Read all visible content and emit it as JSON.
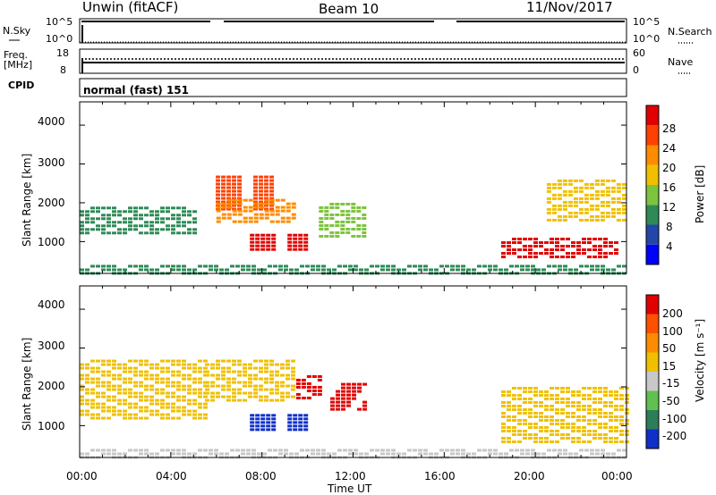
{
  "header": {
    "station": "Unwin (fitACF)",
    "beam": "Beam 10",
    "date": "11/Nov/2017"
  },
  "top_panel": {
    "left_label": "N.Sky",
    "right_label": "N.Search",
    "left_ticks": [
      "10^5",
      "10^0"
    ],
    "right_ticks": [
      "10^5",
      "10^0"
    ]
  },
  "freq_panel": {
    "left_label_1": "Freq.",
    "left_label_2": "[MHz]",
    "left_ticks": [
      "18",
      "8"
    ],
    "right_label": "Nave",
    "right_ticks": [
      "60",
      "0"
    ]
  },
  "cpid_panel": {
    "label": "CPID",
    "mode_text": "normal (fast) 151"
  },
  "x_axis": {
    "ticks": [
      "00:00",
      "04:00",
      "08:00",
      "12:00",
      "16:00",
      "20:00",
      "00:00"
    ],
    "label": "Time UT"
  },
  "power_panel": {
    "ylabel": "Slant Range [km]",
    "yticks": [
      "4000",
      "3000",
      "2000",
      "1000"
    ],
    "colorbar_label": "Power [dB]",
    "colorbar_ticks": [
      "28",
      "24",
      "20",
      "16",
      "12",
      "8",
      "4"
    ]
  },
  "velocity_panel": {
    "ylabel": "Slant Range [km]",
    "yticks": [
      "4000",
      "3000",
      "2000",
      "1000"
    ],
    "colorbar_label": "Velocity [m s⁻¹]",
    "colorbar_ticks": [
      "200",
      "100",
      "50",
      "15",
      "-15",
      "-50",
      "-100",
      "-200"
    ]
  },
  "colors": {
    "power_scale": [
      "#0000ff",
      "#2346a8",
      "#2e8b57",
      "#7cc43c",
      "#f0c000",
      "#ff8c00",
      "#ff4000",
      "#e00000"
    ],
    "velocity_scale": [
      "#1030c8",
      "#2e7d5a",
      "#60c050",
      "#c8c8c8",
      "#f0c000",
      "#ff8c00",
      "#ff5000",
      "#e00000"
    ]
  },
  "chart_data": [
    {
      "type": "heatmap",
      "title": "Power",
      "xlabel": "Time UT",
      "ylabel": "Slant Range [km]",
      "x_range_hours": [
        0,
        24
      ],
      "ylim": [
        180,
        4600
      ],
      "value_range": [
        0,
        30
      ],
      "value_label": "Power [dB]",
      "regions": [
        {
          "t0": 0.0,
          "t1": 5.0,
          "r0": 1200,
          "r1": 1900,
          "value": 10
        },
        {
          "t0": 5.5,
          "t1": 8.5,
          "r0": 1800,
          "r1": 2700,
          "value": 26
        },
        {
          "t0": 6.0,
          "t1": 9.5,
          "r0": 1500,
          "r1": 2100,
          "value": 22
        },
        {
          "t0": 7.0,
          "t1": 10.0,
          "r0": 800,
          "r1": 1200,
          "value": 28
        },
        {
          "t0": 10.5,
          "t1": 12.5,
          "r0": 1100,
          "r1": 2000,
          "value": 12
        },
        {
          "t0": 0.0,
          "t1": 24.0,
          "r0": 200,
          "r1": 400,
          "value": 8
        },
        {
          "t0": 18.5,
          "t1": 23.5,
          "r0": 600,
          "r1": 1100,
          "value": 28
        },
        {
          "t0": 20.5,
          "t1": 24.0,
          "r0": 1500,
          "r1": 2600,
          "value": 16
        }
      ]
    },
    {
      "type": "heatmap",
      "title": "Velocity",
      "xlabel": "Time UT",
      "ylabel": "Slant Range [km]",
      "x_range_hours": [
        0,
        24
      ],
      "ylim": [
        180,
        4600
      ],
      "value_range": [
        -200,
        200
      ],
      "value_label": "Velocity [m s⁻¹]",
      "regions": [
        {
          "t0": 0.0,
          "t1": 5.5,
          "r0": 1200,
          "r1": 2700,
          "value": 0
        },
        {
          "t0": 5.5,
          "t1": 9.5,
          "r0": 1600,
          "r1": 2700,
          "value": 0
        },
        {
          "t0": 7.0,
          "t1": 10.0,
          "r0": 850,
          "r1": 1300,
          "value": -200
        },
        {
          "t0": 9.5,
          "t1": 10.5,
          "r0": 1700,
          "r1": 2300,
          "value": 200
        },
        {
          "t0": 11.0,
          "t1": 12.5,
          "r0": 1400,
          "r1": 2100,
          "value": 200
        },
        {
          "t0": 0.0,
          "t1": 24.0,
          "r0": 200,
          "r1": 400,
          "value": -30
        },
        {
          "t0": 18.5,
          "t1": 24.0,
          "r0": 600,
          "r1": 2000,
          "value": 0
        }
      ]
    }
  ]
}
